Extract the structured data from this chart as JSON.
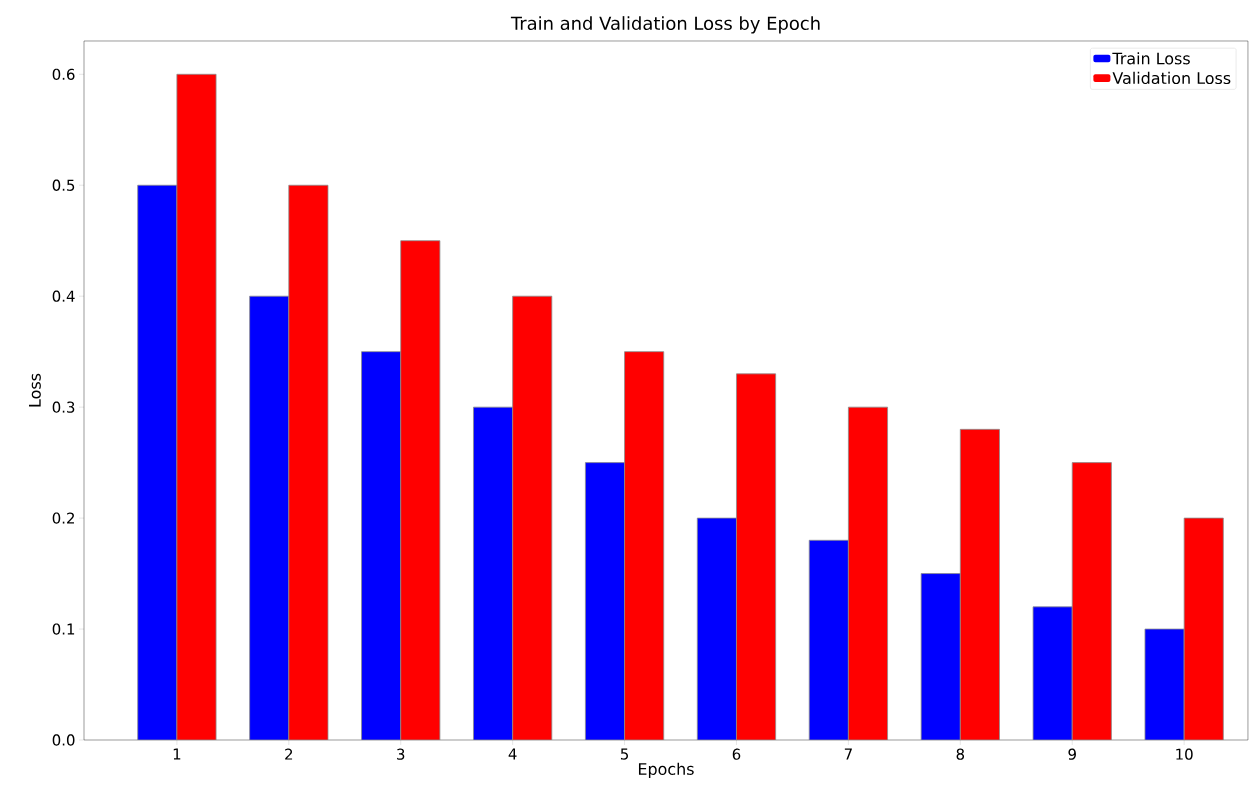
{
  "chart_data": {
    "type": "bar",
    "title": "Train and Validation Loss by Epoch",
    "xlabel": "Epochs",
    "ylabel": "Loss",
    "categories": [
      "1",
      "2",
      "3",
      "4",
      "5",
      "6",
      "7",
      "8",
      "9",
      "10"
    ],
    "series": [
      {
        "name": "Train Loss",
        "color": "#0000ff",
        "values": [
          0.5,
          0.4,
          0.35,
          0.3,
          0.25,
          0.2,
          0.18,
          0.15,
          0.12,
          0.1
        ]
      },
      {
        "name": "Validation Loss",
        "color": "#ff0000",
        "values": [
          0.6,
          0.5,
          0.45,
          0.4,
          0.35,
          0.33,
          0.3,
          0.28,
          0.25,
          0.2
        ]
      }
    ],
    "ylim": [
      0,
      0.63
    ],
    "yticks": [
      {
        "value": 0,
        "label": "0.0"
      },
      0.1,
      0.2,
      0.3,
      0.4,
      0.5,
      0.6
    ],
    "legend": "top right",
    "grid": false
  }
}
